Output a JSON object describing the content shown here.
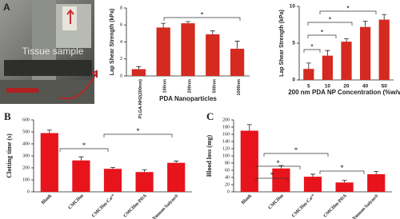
{
  "panel_labels": [
    "A",
    "B",
    "C"
  ],
  "photo_caption": "Tissue sample",
  "chart_data": [
    {
      "type": "bar",
      "y_label": "Lap Shear Strength (kPa)",
      "x_label": "PDA Nanoparticles",
      "categories": [
        "PLGA-NH2(200nm)",
        "100nm",
        "200nm",
        "500nm",
        "1000nm"
      ],
      "values": [
        0.8,
        5.7,
        6.2,
        4.9,
        3.2
      ],
      "errors": [
        0.3,
        0.5,
        0.2,
        0.4,
        0.9
      ],
      "ylim": [
        0,
        8
      ],
      "yticks": [
        0,
        2,
        4,
        6,
        8
      ],
      "color": "#d42a20",
      "annotations": [
        "*"
      ]
    },
    {
      "type": "bar",
      "y_label": "Lap Shear Strength (kPa)",
      "x_label": "200 nm PDA NP Concentration (%w/v)",
      "categories": [
        "5",
        "10",
        "20",
        "40",
        "50"
      ],
      "values": [
        1.5,
        3.3,
        5.2,
        7.2,
        8.2
      ],
      "errors": [
        0.8,
        0.7,
        0.4,
        0.8,
        0.7
      ],
      "ylim": [
        0,
        10
      ],
      "yticks": [
        0,
        5,
        10
      ],
      "color": "#d42a20",
      "annotations": [
        "*",
        "*",
        "*",
        "*"
      ]
    },
    {
      "type": "bar",
      "y_label": "Clotting time (s)",
      "categories": [
        "Blank",
        "CMCHm",
        "CMCHm-Ca²⁺",
        "CMCHm-PDA",
        "Yunnan baiyao®"
      ],
      "values": [
        490,
        262,
        192,
        165,
        242
      ],
      "errors": [
        25,
        30,
        12,
        20,
        15
      ],
      "ylim": [
        0,
        600
      ],
      "yticks": [
        0,
        100,
        200,
        300,
        400,
        500,
        600
      ],
      "color": "#e8141b",
      "annotations": [
        "*",
        "*"
      ]
    },
    {
      "type": "bar",
      "y_label": "Blood loss (mg)",
      "categories": [
        "Blank",
        "CMCHm",
        "CMCHm-Ca²⁺",
        "CMCHm-PDA",
        "Yunnan baiyao®"
      ],
      "values": [
        170,
        65,
        42,
        26,
        49
      ],
      "errors": [
        17,
        8,
        7,
        6,
        8
      ],
      "ylim": [
        0,
        200
      ],
      "yticks": [
        0,
        20,
        40,
        60,
        80,
        100,
        120,
        140,
        160,
        180,
        200
      ],
      "color": "#e8141b",
      "annotations": [
        "*",
        "*",
        "*",
        "*"
      ]
    }
  ]
}
